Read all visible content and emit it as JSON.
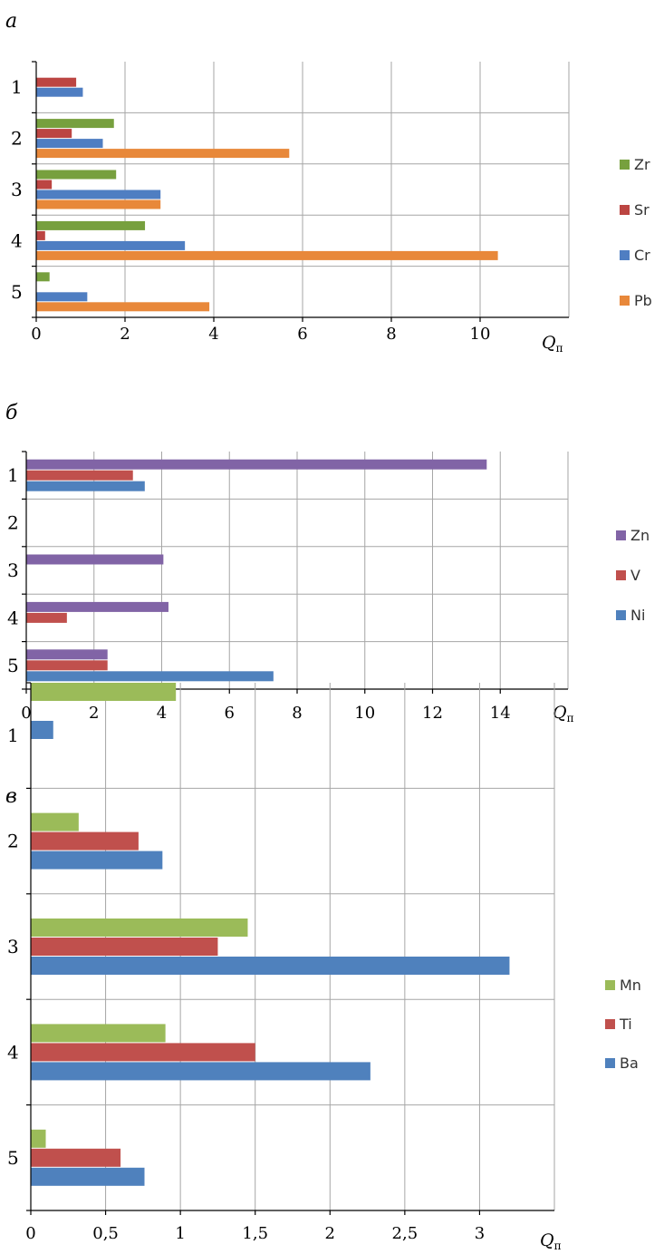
{
  "unit_label": "Q",
  "unit_sub": "п",
  "chart_data": [
    {
      "type": "bar",
      "orientation": "horizontal",
      "panel_label": "а",
      "categories": [
        "1",
        "2",
        "3",
        "4",
        "5"
      ],
      "x_ticks": [
        "0",
        "2",
        "4",
        "6",
        "8",
        "10"
      ],
      "xlim": [
        0,
        12
      ],
      "grid": true,
      "legend_position": "right",
      "series": [
        {
          "name": "Zr",
          "color": "#77a03e",
          "values": [
            0.0,
            1.75,
            1.8,
            2.45,
            0.3
          ]
        },
        {
          "name": "Sr",
          "color": "#bc4542",
          "values": [
            0.9,
            0.8,
            0.35,
            0.2,
            0.0
          ]
        },
        {
          "name": "Cr",
          "color": "#4f7ec2",
          "values": [
            1.05,
            1.5,
            2.8,
            3.35,
            1.15
          ]
        },
        {
          "name": "Pb",
          "color": "#e8883a",
          "values": [
            0.0,
            5.7,
            2.8,
            10.4,
            3.9
          ]
        }
      ]
    },
    {
      "type": "bar",
      "orientation": "horizontal",
      "panel_label": "б",
      "categories": [
        "1",
        "2",
        "3",
        "4",
        "5"
      ],
      "x_ticks": [
        "0",
        "2",
        "4",
        "6",
        "8",
        "10",
        "12",
        "14"
      ],
      "xlim": [
        0,
        16
      ],
      "grid": true,
      "legend_position": "right",
      "series": [
        {
          "name": "Zn",
          "color": "#8164a6",
          "values": [
            13.6,
            0.0,
            4.05,
            4.2,
            2.4
          ]
        },
        {
          "name": "V",
          "color": "#c0504d",
          "values": [
            3.15,
            0.0,
            0.0,
            1.2,
            2.4
          ]
        },
        {
          "name": "Ni",
          "color": "#4f81bd",
          "values": [
            3.5,
            0.0,
            0.0,
            0.0,
            7.3
          ]
        }
      ]
    },
    {
      "type": "bar",
      "orientation": "horizontal",
      "panel_label": "в",
      "categories": [
        "1",
        "2",
        "3",
        "4",
        "5"
      ],
      "x_ticks": [
        "0",
        "0,5",
        "1",
        "1,5",
        "2",
        "2,5",
        "3"
      ],
      "xlim": [
        0,
        3.5
      ],
      "grid": true,
      "legend_position": "right",
      "series": [
        {
          "name": "Mn",
          "color": "#9bbb59",
          "values": [
            0.97,
            0.32,
            1.45,
            0.9,
            0.1
          ]
        },
        {
          "name": "Ti",
          "color": "#c0504d",
          "values": [
            0.0,
            0.72,
            1.25,
            1.5,
            0.6
          ]
        },
        {
          "name": "Ba",
          "color": "#4f81bd",
          "values": [
            0.15,
            0.88,
            3.2,
            2.27,
            0.76
          ]
        }
      ]
    }
  ]
}
